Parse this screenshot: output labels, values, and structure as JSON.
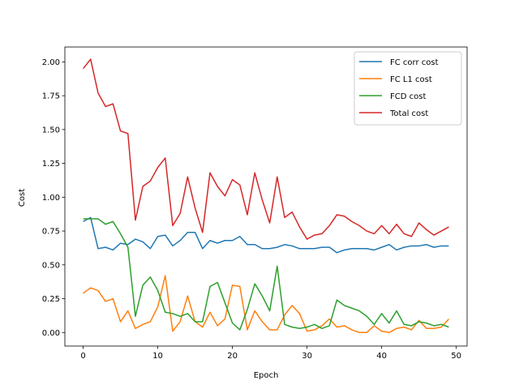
{
  "chart_data": {
    "type": "line",
    "xlabel": "Epoch",
    "ylabel": "Cost",
    "xlim": [
      -2.45,
      51.45
    ],
    "ylim": [
      -0.1,
      2.11
    ],
    "xticks": [
      0,
      10,
      20,
      30,
      40,
      50
    ],
    "xtick_labels": [
      "0",
      "10",
      "20",
      "30",
      "40",
      "50"
    ],
    "yticks": [
      0.0,
      0.25,
      0.5,
      0.75,
      1.0,
      1.25,
      1.5,
      1.75,
      2.0
    ],
    "ytick_labels": [
      "0.00",
      "0.25",
      "0.50",
      "0.75",
      "1.00",
      "1.25",
      "1.50",
      "1.75",
      "2.00"
    ],
    "grid": false,
    "legend_position": "top-right",
    "x": [
      0,
      1,
      2,
      3,
      4,
      5,
      6,
      7,
      8,
      9,
      10,
      11,
      12,
      13,
      14,
      15,
      16,
      17,
      18,
      19,
      20,
      21,
      22,
      23,
      24,
      25,
      26,
      27,
      28,
      29,
      30,
      31,
      32,
      33,
      34,
      35,
      36,
      37,
      38,
      39,
      40,
      41,
      42,
      43,
      44,
      45,
      46,
      47,
      48,
      49
    ],
    "series": [
      {
        "name": "FC corr cost",
        "color": "#1f77b4",
        "values": [
          0.82,
          0.85,
          0.62,
          0.63,
          0.61,
          0.66,
          0.65,
          0.69,
          0.67,
          0.62,
          0.71,
          0.72,
          0.64,
          0.68,
          0.74,
          0.74,
          0.62,
          0.68,
          0.66,
          0.68,
          0.68,
          0.71,
          0.65,
          0.65,
          0.62,
          0.62,
          0.63,
          0.65,
          0.64,
          0.62,
          0.62,
          0.62,
          0.63,
          0.63,
          0.59,
          0.61,
          0.62,
          0.62,
          0.62,
          0.61,
          0.63,
          0.65,
          0.61,
          0.63,
          0.64,
          0.64,
          0.65,
          0.63,
          0.64,
          0.64
        ]
      },
      {
        "name": "FC L1 cost",
        "color": "#ff7f0e",
        "values": [
          0.29,
          0.33,
          0.31,
          0.23,
          0.25,
          0.08,
          0.16,
          0.03,
          0.06,
          0.08,
          0.19,
          0.42,
          0.01,
          0.08,
          0.27,
          0.08,
          0.04,
          0.15,
          0.05,
          0.1,
          0.35,
          0.34,
          0.02,
          0.16,
          0.08,
          0.02,
          0.02,
          0.13,
          0.2,
          0.14,
          0.01,
          0.02,
          0.05,
          0.1,
          0.04,
          0.05,
          0.02,
          0.0,
          0.0,
          0.05,
          0.01,
          0.0,
          0.03,
          0.04,
          0.02,
          0.09,
          0.03,
          0.03,
          0.04,
          0.1
        ]
      },
      {
        "name": "FCD cost",
        "color": "#2ca02c",
        "values": [
          0.84,
          0.84,
          0.84,
          0.8,
          0.82,
          0.73,
          0.63,
          0.12,
          0.35,
          0.41,
          0.31,
          0.15,
          0.14,
          0.12,
          0.14,
          0.08,
          0.08,
          0.34,
          0.37,
          0.22,
          0.07,
          0.02,
          0.17,
          0.36,
          0.27,
          0.16,
          0.49,
          0.06,
          0.04,
          0.03,
          0.04,
          0.06,
          0.03,
          0.05,
          0.24,
          0.2,
          0.18,
          0.16,
          0.12,
          0.06,
          0.14,
          0.07,
          0.16,
          0.06,
          0.05,
          0.08,
          0.07,
          0.05,
          0.06,
          0.04
        ]
      },
      {
        "name": "Total cost",
        "color": "#d62728",
        "values": [
          1.95,
          2.02,
          1.77,
          1.67,
          1.69,
          1.49,
          1.47,
          0.83,
          1.08,
          1.12,
          1.22,
          1.29,
          0.79,
          0.88,
          1.15,
          0.92,
          0.74,
          1.18,
          1.08,
          1.01,
          1.13,
          1.09,
          0.87,
          1.18,
          0.98,
          0.81,
          1.15,
          0.85,
          0.89,
          0.78,
          0.69,
          0.72,
          0.73,
          0.79,
          0.87,
          0.86,
          0.82,
          0.79,
          0.75,
          0.73,
          0.79,
          0.73,
          0.8,
          0.73,
          0.71,
          0.81,
          0.76,
          0.72,
          0.75,
          0.78
        ]
      }
    ]
  }
}
